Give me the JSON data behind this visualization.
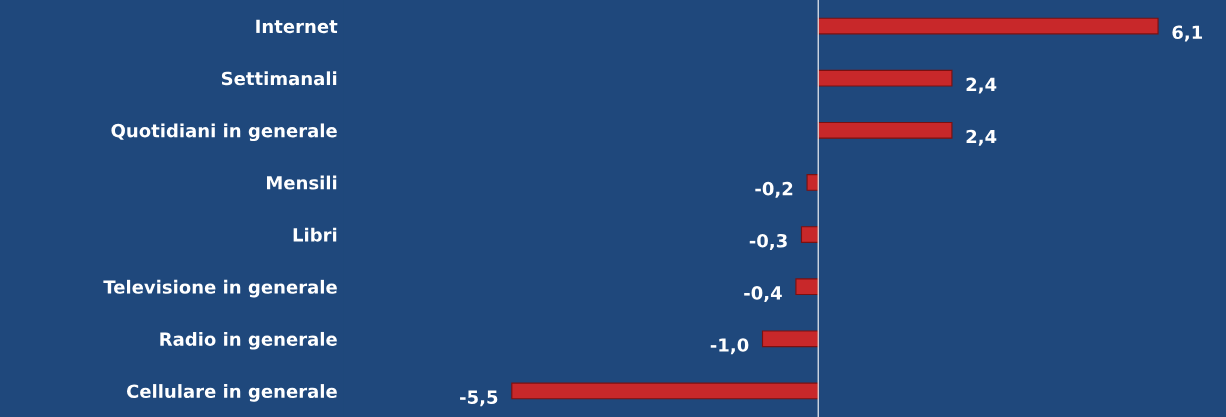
{
  "chart_data": {
    "type": "bar",
    "orientation": "horizontal",
    "categories": [
      "Internet",
      "Settimanali",
      "Quotidiani in generale",
      "Mensili",
      "Libri",
      "Televisione in generale",
      "Radio in generale",
      "Cellulare in generale"
    ],
    "values": [
      6.1,
      2.4,
      2.4,
      -0.2,
      -0.3,
      -0.4,
      -1.0,
      -5.5
    ],
    "value_labels": [
      "6,1",
      "2,4",
      "2,4",
      "-0,2",
      "-0,3",
      "-0,4",
      "-1,0",
      "-5,5"
    ],
    "color": "#c8282a",
    "grid": false,
    "legend": false
  }
}
